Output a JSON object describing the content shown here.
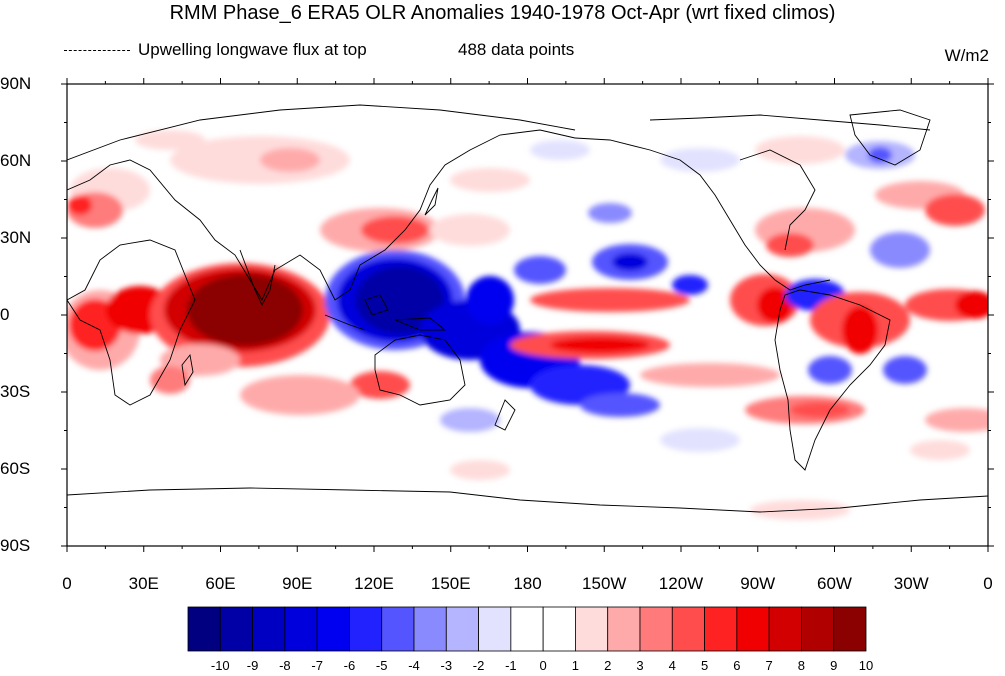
{
  "title": "RMM Phase_6 ERA5 OLR Anomalies 1940-1978 Oct-Apr (wrt fixed climos)",
  "subtitle_left": "Upwelling longwave flux at top",
  "subtitle_center": "488 data points",
  "units": "W/m2",
  "map": {
    "lon_range": [
      0,
      360
    ],
    "lat_range": [
      -90,
      90
    ],
    "lat_ticks": [
      {
        "value": 90,
        "label": "90N"
      },
      {
        "value": 60,
        "label": "60N"
      },
      {
        "value": 30,
        "label": "30N"
      },
      {
        "value": 0,
        "label": "0"
      },
      {
        "value": -30,
        "label": "30S"
      },
      {
        "value": -60,
        "label": "60S"
      },
      {
        "value": -90,
        "label": "90S"
      }
    ],
    "lon_ticks": [
      {
        "value": 0,
        "label": "0"
      },
      {
        "value": 30,
        "label": "30E"
      },
      {
        "value": 60,
        "label": "60E"
      },
      {
        "value": 90,
        "label": "90E"
      },
      {
        "value": 120,
        "label": "120E"
      },
      {
        "value": 150,
        "label": "150E"
      },
      {
        "value": 180,
        "label": "180"
      },
      {
        "value": 210,
        "label": "150W"
      },
      {
        "value": 240,
        "label": "120W"
      },
      {
        "value": 270,
        "label": "90W"
      },
      {
        "value": 300,
        "label": "60W"
      },
      {
        "value": 330,
        "label": "30W"
      },
      {
        "value": 360,
        "label": "0"
      }
    ]
  },
  "colorbar": {
    "labels": [
      "-10",
      "-9",
      "-8",
      "-7",
      "-6",
      "-5",
      "-4",
      "-3",
      "-2",
      "-1",
      "0",
      "1",
      "2",
      "3",
      "4",
      "5",
      "6",
      "7",
      "8",
      "9",
      "10"
    ],
    "colors": [
      "#000080",
      "#0000a6",
      "#0000c2",
      "#0000dc",
      "#0000f0",
      "#2222ff",
      "#5555ff",
      "#8a8aff",
      "#b4b4ff",
      "#e2e2ff",
      "#ffffff",
      "#ffffff",
      "#ffdcdc",
      "#ffaaaa",
      "#ff7b7b",
      "#ff4d4d",
      "#ff2222",
      "#f00000",
      "#d20000",
      "#b00000",
      "#8b0000"
    ]
  }
}
